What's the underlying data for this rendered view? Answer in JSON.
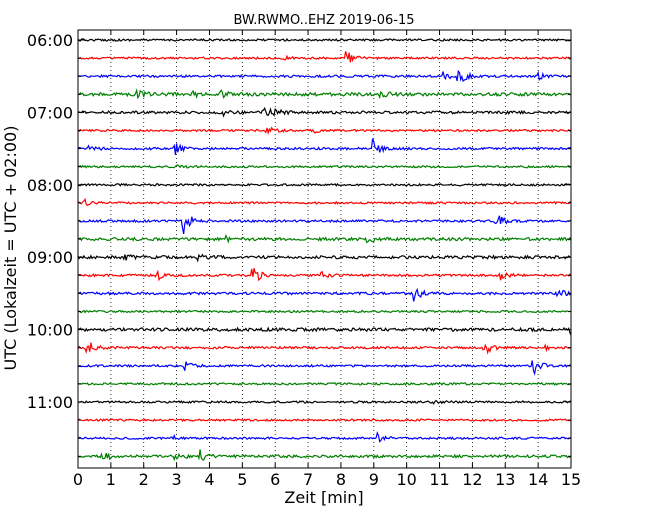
{
  "chart_data": {
    "type": "line",
    "title": "BW.RWMO..EHZ 2019-06-15",
    "xlabel": "Zeit  [min]",
    "ylabel": "UTC (Lokalzeit = UTC + 02:00)",
    "xlim": [
      0,
      15
    ],
    "x_ticks": [
      "0",
      "1",
      "2",
      "3",
      "4",
      "5",
      "6",
      "7",
      "8",
      "9",
      "10",
      "11",
      "12",
      "13",
      "14",
      "15"
    ],
    "y_ticks": [
      "06:00",
      "07:00",
      "08:00",
      "09:00",
      "10:00",
      "11:00"
    ],
    "grid": "vertical dotted",
    "colors": [
      "#000000",
      "#ff0000",
      "#0000ff",
      "#008000"
    ],
    "traces": [
      {
        "start": "06:00",
        "color": "#000000",
        "noise": 1.0,
        "events": []
      },
      {
        "start": "06:15",
        "color": "#ff0000",
        "noise": 1.0,
        "events": [
          {
            "t": 8.15,
            "amp": 9
          },
          {
            "t": 6.3,
            "amp": 2
          }
        ]
      },
      {
        "start": "06:30",
        "color": "#0000ff",
        "noise": 1.1,
        "events": [
          {
            "t": 11.55,
            "amp": 14
          },
          {
            "t": 11.1,
            "amp": 4
          },
          {
            "t": 14.0,
            "amp": 3
          }
        ]
      },
      {
        "start": "06:45",
        "color": "#008000",
        "noise": 1.6,
        "events": [
          {
            "t": 1.8,
            "amp": 4
          },
          {
            "t": 3.5,
            "amp": 3
          },
          {
            "t": 4.35,
            "amp": 4
          },
          {
            "t": 9.2,
            "amp": 3
          }
        ]
      },
      {
        "start": "07:00",
        "color": "#000000",
        "noise": 1.3,
        "events": [
          {
            "t": 5.65,
            "amp": 8
          },
          {
            "t": 4.4,
            "amp": 3
          },
          {
            "t": 6.0,
            "amp": 3
          }
        ]
      },
      {
        "start": "07:15",
        "color": "#ff0000",
        "noise": 1.0,
        "events": [
          {
            "t": 5.75,
            "amp": 5
          },
          {
            "t": 7.2,
            "amp": 2
          }
        ]
      },
      {
        "start": "07:30",
        "color": "#0000ff",
        "noise": 1.1,
        "events": [
          {
            "t": 8.95,
            "amp": 10
          },
          {
            "t": 2.95,
            "amp": 6
          },
          {
            "t": 0.3,
            "amp": 5
          }
        ]
      },
      {
        "start": "07:45",
        "color": "#008000",
        "noise": 1.0,
        "events": [
          {
            "t": 2.95,
            "amp": 3
          }
        ]
      },
      {
        "start": "08:00",
        "color": "#000000",
        "noise": 1.0,
        "events": []
      },
      {
        "start": "08:15",
        "color": "#ff0000",
        "noise": 1.0,
        "events": [
          {
            "t": 0.2,
            "amp": 3
          }
        ]
      },
      {
        "start": "08:30",
        "color": "#0000ff",
        "noise": 1.1,
        "events": [
          {
            "t": 3.2,
            "amp": 14
          },
          {
            "t": 12.7,
            "amp": 9
          }
        ]
      },
      {
        "start": "08:45",
        "color": "#008000",
        "noise": 1.5,
        "events": [
          {
            "t": 4.5,
            "amp": 3
          },
          {
            "t": 8.8,
            "amp": 3
          }
        ]
      },
      {
        "start": "09:00",
        "color": "#000000",
        "noise": 1.5,
        "events": [
          {
            "t": 1.4,
            "amp": 3
          },
          {
            "t": 3.6,
            "amp": 3
          }
        ]
      },
      {
        "start": "09:15",
        "color": "#ff0000",
        "noise": 1.1,
        "events": [
          {
            "t": 5.3,
            "amp": 11
          },
          {
            "t": 2.4,
            "amp": 5
          },
          {
            "t": 12.85,
            "amp": 5
          },
          {
            "t": 7.4,
            "amp": 3
          }
        ]
      },
      {
        "start": "09:30",
        "color": "#0000ff",
        "noise": 1.2,
        "events": [
          {
            "t": 10.2,
            "amp": 9
          },
          {
            "t": 14.6,
            "amp": 5
          }
        ]
      },
      {
        "start": "09:45",
        "color": "#008000",
        "noise": 1.0,
        "events": []
      },
      {
        "start": "10:00",
        "color": "#000000",
        "noise": 1.6,
        "events": [
          {
            "t": 15.0,
            "amp": 5
          }
        ]
      },
      {
        "start": "10:15",
        "color": "#ff0000",
        "noise": 1.1,
        "events": [
          {
            "t": 0.25,
            "amp": 10
          },
          {
            "t": 12.35,
            "amp": 8
          },
          {
            "t": 14.2,
            "amp": 2
          }
        ]
      },
      {
        "start": "10:30",
        "color": "#0000ff",
        "noise": 1.0,
        "events": [
          {
            "t": 13.85,
            "amp": 10
          },
          {
            "t": 3.25,
            "amp": 4
          }
        ]
      },
      {
        "start": "10:45",
        "color": "#008000",
        "noise": 1.0,
        "events": []
      },
      {
        "start": "11:00",
        "color": "#000000",
        "noise": 1.0,
        "events": [
          {
            "t": 10.8,
            "amp": 2
          }
        ]
      },
      {
        "start": "11:15",
        "color": "#ff0000",
        "noise": 1.0,
        "events": []
      },
      {
        "start": "11:30",
        "color": "#0000ff",
        "noise": 1.0,
        "events": [
          {
            "t": 9.1,
            "amp": 6
          },
          {
            "t": 2.9,
            "amp": 2
          }
        ]
      },
      {
        "start": "11:45",
        "color": "#008000",
        "noise": 1.3,
        "events": [
          {
            "t": 0.75,
            "amp": 5
          },
          {
            "t": 2.95,
            "amp": 4
          },
          {
            "t": 3.7,
            "amp": 6
          }
        ]
      }
    ]
  }
}
